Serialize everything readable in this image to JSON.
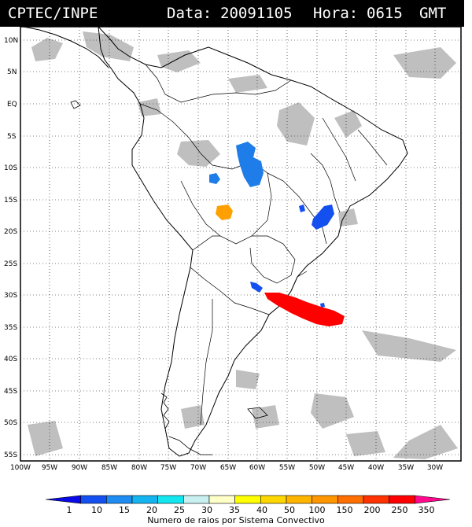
{
  "header": {
    "source": "CPTEC/INPE",
    "date_label": "Data:",
    "date_value": "20091105",
    "hour_label": "Hora:",
    "hour_value": "0615",
    "tz": "GMT"
  },
  "map": {
    "lat_labels": [
      "10N",
      "5N",
      "EQ",
      "5S",
      "10S",
      "15S",
      "20S",
      "25S",
      "30S",
      "35S",
      "40S",
      "45S",
      "50S",
      "55S"
    ],
    "lon_labels": [
      "100W",
      "95W",
      "90W",
      "85W",
      "80W",
      "75W",
      "70W",
      "65W",
      "60W",
      "55W",
      "50W",
      "45W",
      "40W",
      "35W",
      "30W"
    ],
    "grid_style": "dotted"
  },
  "legend": {
    "ticks": [
      "1",
      "10",
      "15",
      "20",
      "25",
      "30",
      "35",
      "40",
      "50",
      "100",
      "150",
      "200",
      "250",
      "350"
    ],
    "colors": [
      "#0a0ae6",
      "#1450f0",
      "#1e8cf0",
      "#14b4f0",
      "#14e6f0",
      "#c8f0f0",
      "#ffffc8",
      "#ffff00",
      "#ffd700",
      "#ffb400",
      "#ff9600",
      "#ff6e00",
      "#ff3200",
      "#ff0000",
      "#ff0a8c"
    ],
    "caption": "Numero de raios por Sistema Convectivo"
  },
  "features": [
    {
      "name": "convective-system-amazon",
      "color": "#1e7de8"
    },
    {
      "name": "convective-system-bolivia",
      "color": "#ffa000"
    },
    {
      "name": "convective-system-minas",
      "color": "#1450f0"
    },
    {
      "name": "convective-system-uruguay",
      "color": "#ff0000"
    }
  ]
}
